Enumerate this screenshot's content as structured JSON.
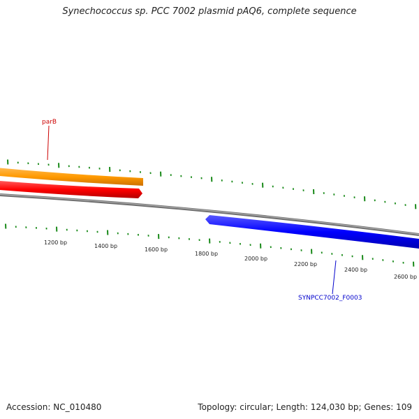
{
  "title": "Synechococcus sp. PCC 7002 plasmid pAQ6, complete sequence",
  "ruler": {
    "tick_labels": [
      "1200 bp",
      "1400 bp",
      "1600 bp",
      "1800 bp",
      "2000 bp",
      "2200 bp",
      "2400 bp",
      "2600 bp"
    ]
  },
  "genes": [
    {
      "label": "parB",
      "strand": "forward",
      "color": "#cc0000"
    },
    {
      "label": "SYNPCC7002_F0003",
      "strand": "reverse",
      "color": "#0000cc"
    }
  ],
  "colors": {
    "forward_gene": "#ff1a1a",
    "reverse_gene": "#1a1aff",
    "orange_track": "#ff9900",
    "backbone": "#808080",
    "tick_marks": "#1a8a1a"
  },
  "footer": {
    "accession": "Accession: NC_010480",
    "summary": "Topology: circular; Length: 124,030 bp; Genes: 109"
  }
}
